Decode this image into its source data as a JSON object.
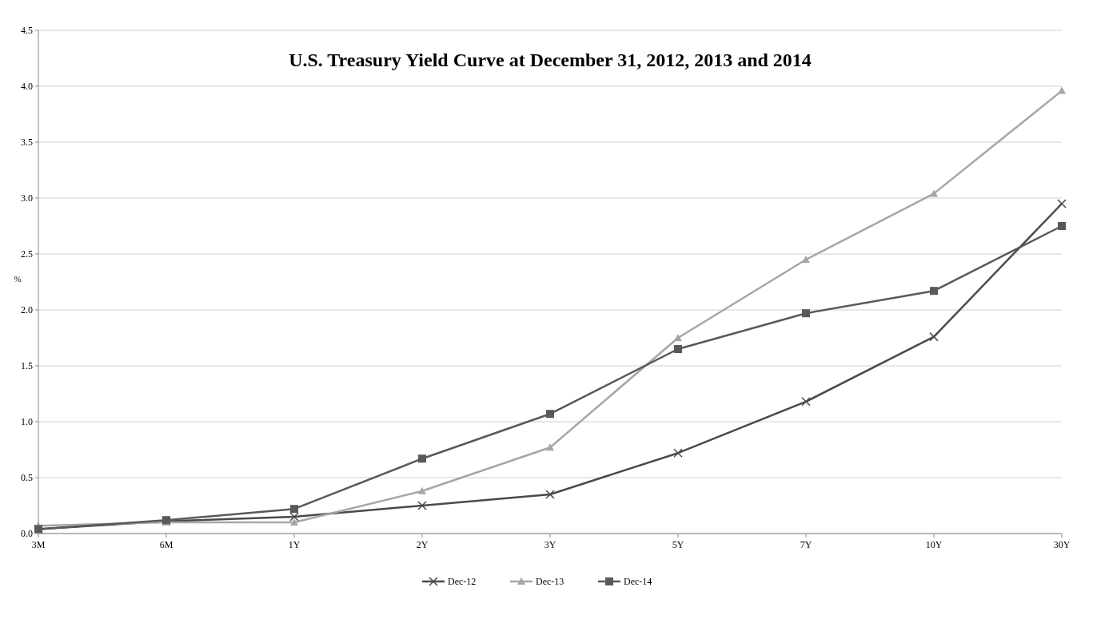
{
  "chart_data": {
    "type": "line",
    "title": "U.S. Treasury Yield Curve at December 31, 2012, 2013 and 2014",
    "ylabel": "%",
    "categories": [
      "3M",
      "6M",
      "1Y",
      "2Y",
      "3Y",
      "5Y",
      "7Y",
      "10Y",
      "30Y"
    ],
    "series": [
      {
        "name": "Dec-12",
        "color": "#4a4a4a",
        "marker": "cross",
        "values": [
          0.04,
          0.11,
          0.15,
          0.25,
          0.35,
          0.72,
          1.18,
          1.76,
          2.95
        ]
      },
      {
        "name": "Dec-13",
        "color": "#a6a6a6",
        "marker": "triangle",
        "values": [
          0.07,
          0.1,
          0.1,
          0.38,
          0.77,
          1.75,
          2.45,
          3.04,
          3.96
        ]
      },
      {
        "name": "Dec-14",
        "color": "#595959",
        "marker": "square",
        "values": [
          0.04,
          0.12,
          0.22,
          0.67,
          1.07,
          1.65,
          1.97,
          2.17,
          2.75
        ]
      }
    ],
    "ylim": [
      0,
      4.5
    ],
    "yticks": [
      {
        "value": 0,
        "label": "0.0"
      },
      {
        "value": 0.5,
        "label": "0.5"
      },
      {
        "value": 1,
        "label": "1.0"
      },
      {
        "value": 1.5,
        "label": "1.5"
      },
      {
        "value": 2,
        "label": "2.0"
      },
      {
        "value": 2.5,
        "label": "2.5"
      },
      {
        "value": 3,
        "label": "3.0"
      },
      {
        "value": 3.5,
        "label": "3.5"
      },
      {
        "value": 4,
        "label": "4.0"
      },
      {
        "value": 4.5,
        "label": "4.5"
      }
    ],
    "grid": "y",
    "legend": "bottom",
    "line_style": "solid"
  }
}
